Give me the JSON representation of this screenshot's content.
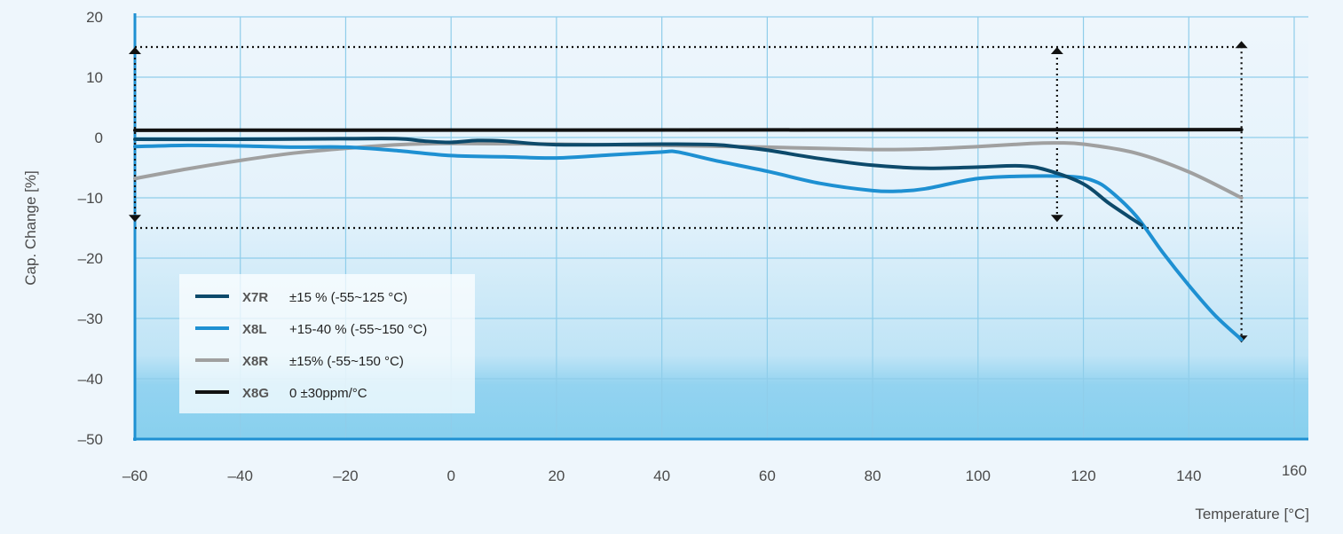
{
  "chart_data": {
    "type": "line",
    "xlabel": "Temperature [°C]",
    "ylabel": "Cap. Change [%]",
    "xlim": [
      -60,
      160
    ],
    "ylim": [
      -50,
      20
    ],
    "xticks": [
      -60,
      -40,
      -20,
      0,
      20,
      40,
      60,
      80,
      100,
      120,
      140,
      160
    ],
    "yticks": [
      20,
      10,
      0,
      -10,
      -20,
      -30,
      -40,
      -50
    ],
    "xtick_labels": [
      "–60",
      "–40",
      "–20",
      "0",
      "20",
      "40",
      "60",
      "80",
      "100",
      "120",
      "140",
      "160"
    ],
    "ytick_labels": [
      "20",
      "10",
      "0",
      "–10",
      "–20",
      "–30",
      "–40",
      "–50"
    ],
    "grid": true,
    "legend_position": "bottom-left",
    "series": [
      {
        "name": "X7R",
        "description": "±15 % (-55~125 °C)",
        "color": "#0d4a6b",
        "points": [
          [
            -60,
            -0.3
          ],
          [
            -40,
            -0.3
          ],
          [
            -20,
            -0.2
          ],
          [
            -10,
            -0.2
          ],
          [
            -5,
            -0.6
          ],
          [
            0,
            -0.8
          ],
          [
            5,
            -0.5
          ],
          [
            10,
            -0.6
          ],
          [
            20,
            -1.2
          ],
          [
            40,
            -1.1
          ],
          [
            50,
            -1.2
          ],
          [
            55,
            -1.6
          ],
          [
            60,
            -2.1
          ],
          [
            70,
            -3.5
          ],
          [
            80,
            -4.6
          ],
          [
            90,
            -5.1
          ],
          [
            100,
            -4.9
          ],
          [
            108,
            -4.7
          ],
          [
            113,
            -5.4
          ],
          [
            120,
            -7.7
          ],
          [
            125,
            -11
          ],
          [
            131,
            -14.5
          ]
        ]
      },
      {
        "name": "X8L",
        "description": "+15-40 % (-55~150 °C)",
        "color": "#1e90d2",
        "points": [
          [
            -60,
            -1.5
          ],
          [
            -50,
            -1.3
          ],
          [
            -40,
            -1.4
          ],
          [
            -30,
            -1.6
          ],
          [
            -20,
            -1.6
          ],
          [
            -10,
            -2.2
          ],
          [
            0,
            -3
          ],
          [
            10,
            -3.2
          ],
          [
            20,
            -3.4
          ],
          [
            30,
            -2.9
          ],
          [
            40,
            -2.4
          ],
          [
            43,
            -2.4
          ],
          [
            50,
            -3.8
          ],
          [
            60,
            -5.6
          ],
          [
            70,
            -7.6
          ],
          [
            80,
            -8.8
          ],
          [
            85,
            -8.9
          ],
          [
            90,
            -8.5
          ],
          [
            100,
            -6.8
          ],
          [
            110,
            -6.4
          ],
          [
            118,
            -6.5
          ],
          [
            122,
            -7.2
          ],
          [
            125,
            -8.8
          ],
          [
            130,
            -13
          ],
          [
            135,
            -19
          ],
          [
            140,
            -24.5
          ],
          [
            145,
            -29.5
          ],
          [
            150,
            -33.5
          ]
        ]
      },
      {
        "name": "X8R",
        "description": "±15% (-55~150 °C)",
        "color": "#a0a0a0",
        "points": [
          [
            -60,
            -6.8
          ],
          [
            -50,
            -5.2
          ],
          [
            -40,
            -3.8
          ],
          [
            -30,
            -2.6
          ],
          [
            -20,
            -1.8
          ],
          [
            -10,
            -1.2
          ],
          [
            0,
            -1
          ],
          [
            20,
            -1.1
          ],
          [
            40,
            -1.3
          ],
          [
            60,
            -1.6
          ],
          [
            80,
            -2
          ],
          [
            90,
            -1.9
          ],
          [
            100,
            -1.5
          ],
          [
            110,
            -1
          ],
          [
            115,
            -0.9
          ],
          [
            120,
            -1.1
          ],
          [
            130,
            -2.6
          ],
          [
            140,
            -5.7
          ],
          [
            150,
            -10
          ]
        ]
      },
      {
        "name": "X8G",
        "description": "0 ±30ppm/°C",
        "color": "#111111",
        "points": [
          [
            -60,
            1.2
          ],
          [
            150,
            1.3
          ]
        ]
      }
    ],
    "annotations": [
      {
        "type": "dotted-line",
        "from": [
          -60,
          15
        ],
        "to": [
          150,
          15
        ]
      },
      {
        "type": "dotted-line",
        "from": [
          -60,
          -15
        ],
        "to": [
          150,
          -15
        ]
      },
      {
        "type": "double-arrow",
        "x": -60,
        "from": 15,
        "to": -14
      },
      {
        "type": "double-arrow",
        "x": 115,
        "from": 15,
        "to": -14
      },
      {
        "type": "double-arrow",
        "x": 150,
        "from": 16,
        "to": -34
      }
    ]
  },
  "colors": {
    "axis": "#1e90d2",
    "grid": "#8fcdea",
    "background_top": "#eef6fc",
    "background_bottom": "#88d0ee",
    "legend_box": "#ffffff",
    "annotation": "#111111"
  }
}
